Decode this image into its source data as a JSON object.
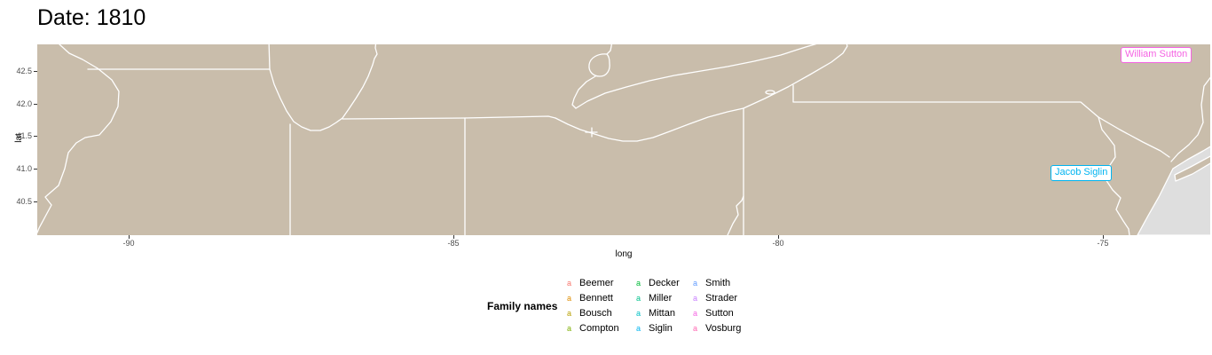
{
  "title": "Date: 1810",
  "map": {
    "land_color": "#C9BDAB",
    "water_color": "#DEDEDE",
    "border_color": "#FFFFFF",
    "point_labels": [
      {
        "text": "William Sutton",
        "color": "#F564E3",
        "approx_long": -74.2,
        "approx_lat": 42.7
      },
      {
        "text": "Jacob Siglin",
        "color": "#00B4F0",
        "approx_long": -75.4,
        "approx_lat": 40.9
      }
    ]
  },
  "axes": {
    "x": {
      "title": "long",
      "ticks": [
        "-90",
        "-85",
        "-80",
        "-75"
      ]
    },
    "y": {
      "title": "lat",
      "ticks": [
        "42.5",
        "42.0",
        "41.5",
        "41.0",
        "40.5"
      ]
    }
  },
  "legend": {
    "title": "Family names",
    "key_glyph": "a",
    "families": [
      {
        "name": "Beemer",
        "color": "#F8766D"
      },
      {
        "name": "Bennett",
        "color": "#DE8C00"
      },
      {
        "name": "Bousch",
        "color": "#B79F00"
      },
      {
        "name": "Compton",
        "color": "#7CAE00"
      },
      {
        "name": "Decker",
        "color": "#00BA38"
      },
      {
        "name": "Miller",
        "color": "#00C08B"
      },
      {
        "name": "Mittan",
        "color": "#00BFC4"
      },
      {
        "name": "Siglin",
        "color": "#00B4F0"
      },
      {
        "name": "Smith",
        "color": "#619CFF"
      },
      {
        "name": "Strader",
        "color": "#C77CFF"
      },
      {
        "name": "Sutton",
        "color": "#F564E3"
      },
      {
        "name": "Vosburg",
        "color": "#FF64B0"
      }
    ]
  }
}
